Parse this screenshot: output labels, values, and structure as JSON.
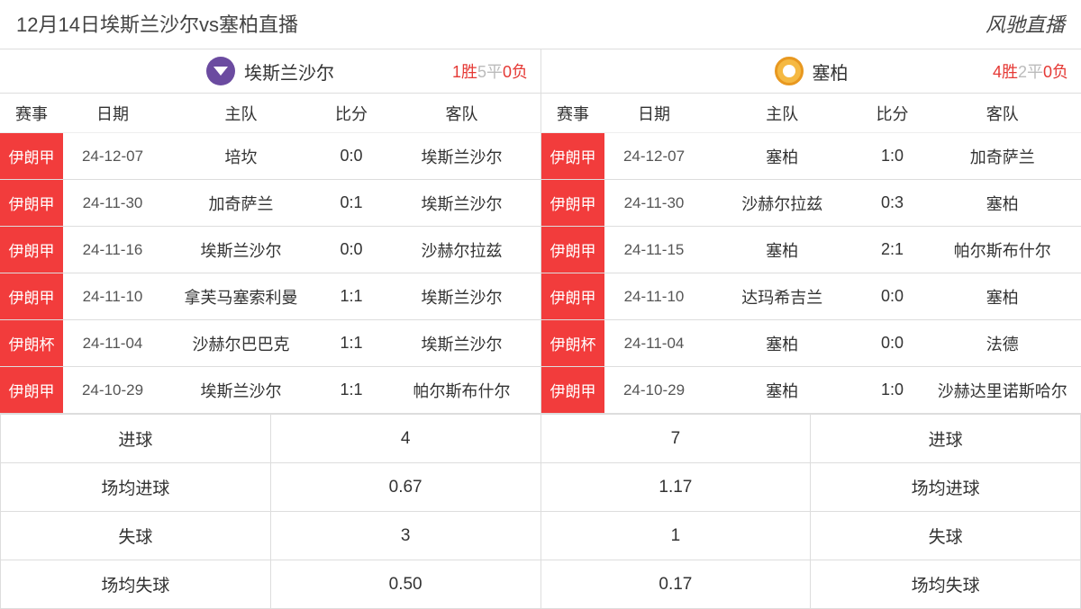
{
  "header": {
    "title": "12月14日埃斯兰沙尔vs塞柏直播",
    "brand": "风驰直播"
  },
  "columns": {
    "league": "赛事",
    "date": "日期",
    "home": "主队",
    "score": "比分",
    "away": "客队"
  },
  "colors": {
    "tag_bg": "#f23c3c",
    "tag_fg": "#ffffff",
    "win": "#e53935",
    "draw": "#bbbbbb",
    "loss": "#e53935",
    "border": "#dddddd",
    "logo_left": "#6b4ba0",
    "logo_right": "#f5b942"
  },
  "teams": {
    "left": {
      "name": "埃斯兰沙尔",
      "record": {
        "win_n": "1",
        "win_l": "胜",
        "draw_n": "5",
        "draw_l": "平",
        "loss_n": "0",
        "loss_l": "负"
      },
      "rows": [
        {
          "league": "伊朗甲",
          "date": "24-12-07",
          "home": "培坎",
          "score": "0:0",
          "away": "埃斯兰沙尔"
        },
        {
          "league": "伊朗甲",
          "date": "24-11-30",
          "home": "加奇萨兰",
          "score": "0:1",
          "away": "埃斯兰沙尔"
        },
        {
          "league": "伊朗甲",
          "date": "24-11-16",
          "home": "埃斯兰沙尔",
          "score": "0:0",
          "away": "沙赫尔拉兹"
        },
        {
          "league": "伊朗甲",
          "date": "24-11-10",
          "home": "拿芙马塞索利曼",
          "score": "1:1",
          "away": "埃斯兰沙尔"
        },
        {
          "league": "伊朗杯",
          "date": "24-11-04",
          "home": "沙赫尔巴巴克",
          "score": "1:1",
          "away": "埃斯兰沙尔"
        },
        {
          "league": "伊朗甲",
          "date": "24-10-29",
          "home": "埃斯兰沙尔",
          "score": "1:1",
          "away": "帕尔斯布什尔"
        }
      ]
    },
    "right": {
      "name": "塞柏",
      "record": {
        "win_n": "4",
        "win_l": "胜",
        "draw_n": "2",
        "draw_l": "平",
        "loss_n": "0",
        "loss_l": "负"
      },
      "rows": [
        {
          "league": "伊朗甲",
          "date": "24-12-07",
          "home": "塞柏",
          "score": "1:0",
          "away": "加奇萨兰"
        },
        {
          "league": "伊朗甲",
          "date": "24-11-30",
          "home": "沙赫尔拉兹",
          "score": "0:3",
          "away": "塞柏"
        },
        {
          "league": "伊朗甲",
          "date": "24-11-15",
          "home": "塞柏",
          "score": "2:1",
          "away": "帕尔斯布什尔"
        },
        {
          "league": "伊朗甲",
          "date": "24-11-10",
          "home": "达玛希吉兰",
          "score": "0:0",
          "away": "塞柏"
        },
        {
          "league": "伊朗杯",
          "date": "24-11-04",
          "home": "塞柏",
          "score": "0:0",
          "away": "法德"
        },
        {
          "league": "伊朗甲",
          "date": "24-10-29",
          "home": "塞柏",
          "score": "1:0",
          "away": "沙赫达里诺斯哈尔"
        }
      ]
    }
  },
  "stats": {
    "labels": {
      "goals": "进球",
      "avg_goals": "场均进球",
      "conceded": "失球",
      "avg_conceded": "场均失球"
    },
    "left": {
      "goals": "4",
      "avg_goals": "0.67",
      "conceded": "3",
      "avg_conceded": "0.50"
    },
    "right": {
      "goals": "7",
      "avg_goals": "1.17",
      "conceded": "1",
      "avg_conceded": "0.17"
    }
  }
}
